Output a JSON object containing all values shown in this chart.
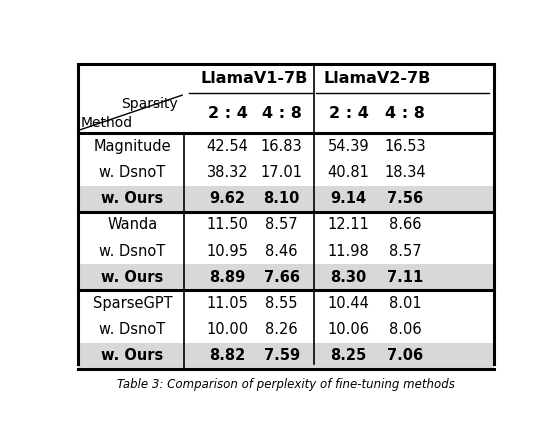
{
  "col_groups": [
    "LlamaV1-7B",
    "LlamaV2-7B"
  ],
  "sparsity_levels": [
    "2 : 4",
    "4 : 8",
    "2 : 4",
    "4 : 8"
  ],
  "row_groups": [
    {
      "methods": [
        "Magnitude",
        "w. DsnoT",
        "w. Ours"
      ],
      "bold_row": 2,
      "values": [
        [
          "42.54",
          "16.83",
          "54.39",
          "16.53"
        ],
        [
          "38.32",
          "17.01",
          "40.81",
          "18.34"
        ],
        [
          "9.62",
          "8.10",
          "9.14",
          "7.56"
        ]
      ]
    },
    {
      "methods": [
        "Wanda",
        "w. DsnoT",
        "w. Ours"
      ],
      "bold_row": 2,
      "values": [
        [
          "11.50",
          "8.57",
          "12.11",
          "8.66"
        ],
        [
          "10.95",
          "8.46",
          "11.98",
          "8.57"
        ],
        [
          "8.89",
          "7.66",
          "8.30",
          "7.11"
        ]
      ]
    },
    {
      "methods": [
        "SparseGPT",
        "w. DsnoT",
        "w. Ours"
      ],
      "bold_row": 2,
      "values": [
        [
          "11.05",
          "8.55",
          "10.44",
          "8.01"
        ],
        [
          "10.00",
          "8.26",
          "10.06",
          "8.06"
        ],
        [
          "8.82",
          "7.59",
          "8.25",
          "7.06"
        ]
      ]
    }
  ],
  "highlight_color": "#d8d8d8",
  "background_color": "#ffffff",
  "figsize": [
    5.58,
    4.48
  ],
  "dpi": 100,
  "caption": "Table 3: Comparison of perplexity of fine-tuning methods"
}
